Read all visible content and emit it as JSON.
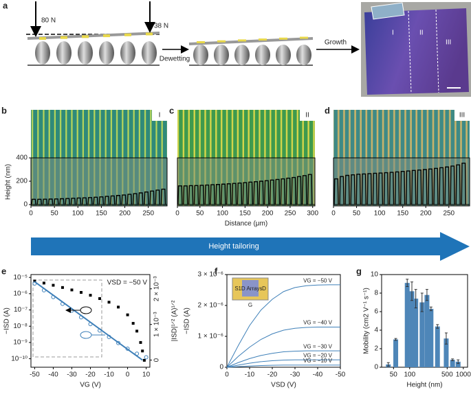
{
  "schematic": {
    "panel": "a",
    "force_left": "80 N",
    "force_right": "38 N",
    "step1": "Dewetting",
    "step2": "Growth",
    "regions": [
      "I",
      "II",
      "III"
    ]
  },
  "banner": "Height tailoring",
  "chart_data": [
    {
      "type": "profile",
      "panel": "b",
      "label": "I",
      "ylabel": "Height (nm)",
      "xlim": [
        0,
        290
      ],
      "xticks": [
        0,
        50,
        100,
        150,
        200,
        250
      ],
      "ylim": [
        0,
        400
      ],
      "yticks": [
        0,
        200,
        400
      ],
      "x": [
        6,
        18,
        30,
        42,
        54,
        66,
        78,
        90,
        102,
        114,
        126,
        138,
        150,
        162,
        174,
        186,
        198,
        210,
        222,
        234,
        246,
        258,
        270,
        282
      ],
      "values": [
        45,
        45,
        46,
        47,
        48,
        50,
        52,
        54,
        56,
        58,
        60,
        63,
        66,
        70,
        74,
        78,
        82,
        88,
        94,
        100,
        108,
        116,
        124,
        132
      ]
    },
    {
      "type": "profile",
      "panel": "c",
      "label": "II",
      "xlabel": "Distance (μm)",
      "xlim": [
        0,
        305
      ],
      "xticks": [
        0,
        50,
        100,
        150,
        200,
        250,
        300
      ],
      "ylim": [
        0,
        400
      ],
      "x": [
        6,
        18,
        30,
        42,
        54,
        66,
        78,
        90,
        102,
        114,
        126,
        138,
        150,
        162,
        174,
        186,
        198,
        210,
        222,
        234,
        246,
        258,
        270,
        282,
        294
      ],
      "values": [
        160,
        160,
        162,
        163,
        165,
        167,
        170,
        172,
        175,
        178,
        181,
        184,
        188,
        192,
        196,
        200,
        205,
        210,
        215,
        220,
        226,
        232,
        240,
        248,
        258
      ]
    },
    {
      "type": "profile",
      "panel": "d",
      "label": "III",
      "xlim": [
        0,
        295
      ],
      "xticks": [
        0,
        50,
        100,
        150,
        200,
        250
      ],
      "ylim": [
        0,
        400
      ],
      "x": [
        6,
        18,
        30,
        42,
        54,
        66,
        78,
        90,
        102,
        114,
        126,
        138,
        150,
        162,
        174,
        186,
        198,
        210,
        222,
        234,
        246,
        258,
        270,
        282
      ],
      "values": [
        220,
        240,
        250,
        255,
        260,
        262,
        265,
        268,
        270,
        273,
        276,
        280,
        284,
        288,
        292,
        296,
        300,
        305,
        310,
        316,
        322,
        330,
        340,
        355
      ]
    },
    {
      "type": "transfer",
      "panel": "e",
      "xlabel": "VG (V)",
      "ylabel": "−ISD (A)",
      "y2label": "|ISD|¹ᐟ² (A)¹ᐟ²",
      "annotation": "VSD = −50 V",
      "ylog": true,
      "xlim": [
        -52,
        12
      ],
      "xticks": [
        -50,
        -40,
        -30,
        -20,
        -10,
        0,
        10
      ],
      "ylim": [
        3e-11,
        1.5e-05
      ],
      "yticks": [
        {
          "value": 1e-05,
          "label": "10⁻⁵"
        },
        {
          "value": 1e-06,
          "label": "10⁻⁶"
        },
        {
          "value": 1e-07,
          "label": "10⁻⁷"
        },
        {
          "value": 1e-08,
          "label": "10⁻⁸"
        },
        {
          "value": 1e-09,
          "label": "10⁻⁹"
        },
        {
          "value": 1e-10,
          "label": "10⁻¹⁰"
        }
      ],
      "y2lim": [
        -0.0002,
        0.0024
      ],
      "y2ticks": [
        0,
        {
          "value": 0.001,
          "label": "1 × 10⁻³"
        },
        {
          "value": 0.002,
          "label": "2 × 10⁻³"
        }
      ],
      "series": [
        {
          "color": "#000000",
          "marker": "square",
          "x": [
            -50,
            -45,
            -40,
            -35,
            -30,
            -25,
            -20,
            -15,
            -10,
            -5,
            0,
            3,
            5,
            7,
            8,
            9
          ],
          "values": [
            6e-06,
            4.5e-06,
            3.3e-06,
            2.4e-06,
            1.7e-06,
            1.2e-06,
            8e-07,
            5e-07,
            3e-07,
            1.5e-07,
            5e-08,
            1.5e-08,
            5e-09,
            1e-09,
            3e-10,
            8e-11
          ]
        },
        {
          "color": "#3d7fb8",
          "marker": "circle",
          "axis": "y2",
          "x": [
            -50,
            -45,
            -40,
            -35,
            -30,
            -25,
            -20,
            -15,
            -10,
            -5,
            0,
            5,
            10
          ],
          "values": [
            0.00215,
            0.00196,
            0.00177,
            0.00158,
            0.00139,
            0.0012,
            0.00101,
            0.00083,
            0.00065,
            0.00048,
            0.00032,
            0.00018,
            8e-05
          ]
        },
        {
          "color": "#3d7fb8",
          "marker": "line",
          "axis": "y2",
          "x": [
            -50,
            8
          ],
          "values": [
            0.0022,
            0
          ]
        }
      ]
    },
    {
      "type": "line",
      "panel": "f",
      "xlabel": "VSD (V)",
      "ylabel": "−ISD (A)",
      "inset": [
        "S",
        "D",
        "1D Arrays",
        "G"
      ],
      "xlim": [
        0,
        -50
      ],
      "xticks": [
        0,
        -10,
        -20,
        -30,
        -40,
        -50
      ],
      "ylim": [
        0,
        3e-06
      ],
      "yticks": [
        0,
        {
          "value": 1e-06,
          "label": "1 × 10⁻⁶"
        },
        {
          "value": 2e-06,
          "label": "2 × 10⁻⁶"
        },
        {
          "value": 3e-06,
          "label": "3 × 10⁻⁶"
        }
      ],
      "x": [
        0,
        -5,
        -10,
        -15,
        -20,
        -25,
        -30,
        -35,
        -40,
        -45,
        -50
      ],
      "series": [
        {
          "name": "VG = −50 V",
          "color": "#3d7fb8",
          "values": [
            0,
            7e-07,
            1.35e-06,
            1.85e-06,
            2.2e-06,
            2.45e-06,
            2.58e-06,
            2.64e-06,
            2.66e-06,
            2.67e-06,
            2.67e-06
          ]
        },
        {
          "name": "VG = −40 V",
          "color": "#3d7fb8",
          "values": [
            0,
            3.5e-07,
            6.5e-07,
            9e-07,
            1.08e-06,
            1.2e-06,
            1.26e-06,
            1.29e-06,
            1.3e-06,
            1.3e-06,
            1.3e-06
          ]
        },
        {
          "name": "VG = −30 V",
          "color": "#3d7fb8",
          "values": [
            0,
            1.5e-07,
            2.8e-07,
            3.8e-07,
            4.5e-07,
            5e-07,
            5.2e-07,
            5.3e-07,
            5.3e-07,
            5.3e-07,
            5.3e-07
          ]
        },
        {
          "name": "VG = −20 V",
          "color": "#3d7fb8",
          "values": [
            0,
            7e-08,
            1.3e-07,
            1.8e-07,
            2.1e-07,
            2.3e-07,
            2.4e-07,
            2.4e-07,
            2.4e-07,
            2.4e-07,
            2.4e-07
          ]
        },
        {
          "name": "VG = −10 V",
          "color": "#3d7fb8",
          "values": [
            0,
            2e-08,
            4e-08,
            5.5e-08,
            6.5e-08,
            7e-08,
            7e-08,
            7e-08,
            7e-08,
            7e-08,
            7e-08
          ]
        }
      ]
    },
    {
      "type": "bar",
      "panel": "g",
      "xlabel": "Height (nm)",
      "ylabel": "Mobility (cm2 V⁻¹ s⁻¹)",
      "xlog": true,
      "color": "#4e86b8",
      "xlim": [
        30,
        1200
      ],
      "xticks": [
        50,
        100,
        500,
        1000
      ],
      "ylim": [
        0,
        10
      ],
      "yticks": [
        0,
        2,
        4,
        6,
        8,
        10
      ],
      "x": [
        40,
        55,
        90,
        110,
        130,
        170,
        210,
        250,
        330,
        480,
        630,
        800
      ],
      "values": [
        0.3,
        3.0,
        9.1,
        8.2,
        7.4,
        7.0,
        7.8,
        6.3,
        4.4,
        3.1,
        0.8,
        0.6
      ],
      "errors": [
        0.2,
        0.1,
        0.4,
        1.0,
        1.0,
        1.0,
        0.6,
        0.2,
        0.2,
        0.6,
        0.1,
        0.2
      ]
    }
  ]
}
